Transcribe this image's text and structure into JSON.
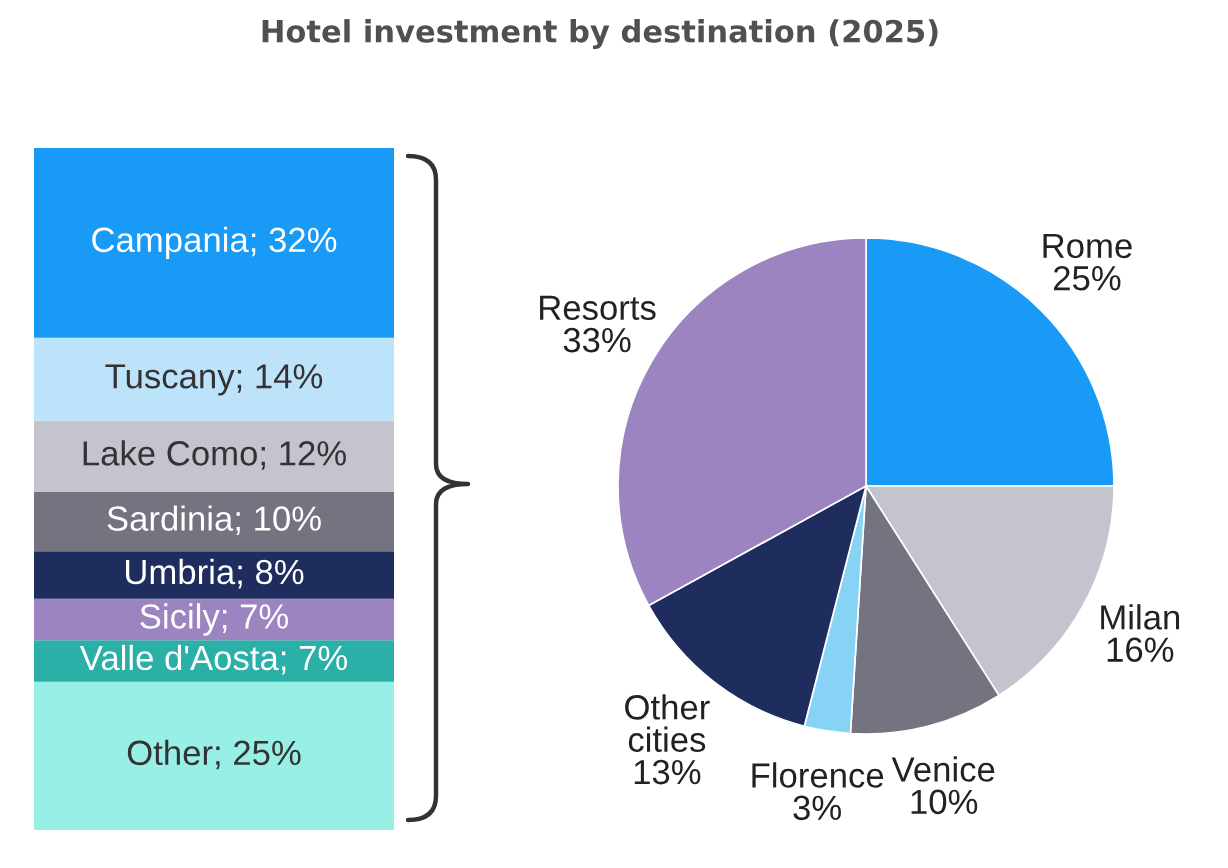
{
  "chart_data": [
    {
      "type": "bar",
      "title": "Hotel investment by destination (2025)",
      "stacked": true,
      "categories": [
        null
      ],
      "series": [
        {
          "color": "#97efe6",
          "values": [
            25
          ],
          "value_labels": [
            "Other; 25%"
          ]
        },
        {
          "color": "#2ab0a6",
          "values": [
            7
          ],
          "value_labels": [
            "Valle d'Aosta; 7%"
          ]
        },
        {
          "color": "#9c84c1",
          "values": [
            7
          ],
          "value_labels": [
            "Sicily; 7%"
          ]
        },
        {
          "color": "#1e2d5e",
          "values": [
            8
          ],
          "value_labels": [
            "Umbria; 8%"
          ]
        },
        {
          "color": "#747480",
          "values": [
            10
          ],
          "value_labels": [
            "Sardinia; 10%"
          ]
        },
        {
          "color": "#c4c4cf",
          "values": [
            12
          ],
          "value_labels": [
            "Lake Como; 12%"
          ]
        },
        {
          "color": "#bde3fb",
          "values": [
            14
          ],
          "value_labels": [
            "Tuscany; 14%"
          ]
        },
        {
          "color": "#1a9af7",
          "values": [
            32
          ],
          "value_labels": [
            "Campania; 32%"
          ]
        }
      ]
    },
    {
      "type": "pie",
      "categories": [
        "Rome",
        "Milan",
        "Venice",
        "Florence",
        "Other cities",
        "Resorts"
      ],
      "values": [
        25,
        16,
        10,
        3,
        13,
        33
      ],
      "colors": [
        "#1a9af7",
        "#c4c4cf",
        "#747480",
        "#86d3f5",
        "#1e2d5e",
        "#9c84c1"
      ],
      "value_labels": [
        "25%",
        "16%",
        "10%",
        "3%",
        "13%",
        "33%"
      ]
    }
  ]
}
